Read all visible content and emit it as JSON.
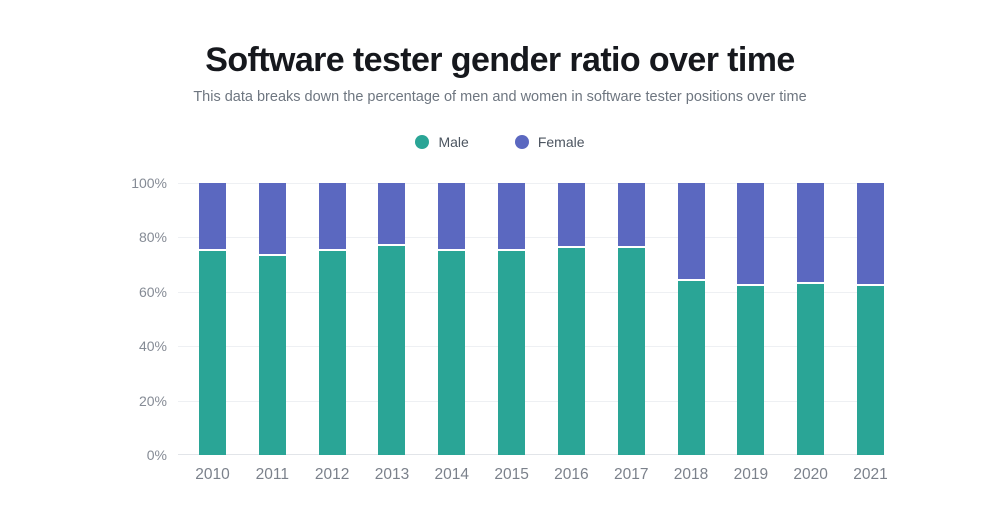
{
  "page": {
    "background": "#ffffff"
  },
  "chart_data": {
    "type": "bar",
    "stacked": true,
    "title": "Software tester gender ratio over time",
    "subtitle": "This data breaks down the percentage of men and women in software tester positions over time",
    "categories": [
      "2010",
      "2011",
      "2012",
      "2013",
      "2014",
      "2015",
      "2016",
      "2017",
      "2018",
      "2019",
      "2020",
      "2021"
    ],
    "series": [
      {
        "name": "Male",
        "color": "#2aa596",
        "values": [
          75,
          73,
          75,
          77,
          75,
          75,
          76,
          76,
          64,
          62,
          63,
          62
        ]
      },
      {
        "name": "Female",
        "color": "#5b68c0",
        "values": [
          25,
          27,
          25,
          23,
          25,
          25,
          24,
          24,
          36,
          38,
          37,
          38
        ]
      }
    ],
    "ylim": [
      0,
      100
    ],
    "yticks": [
      0,
      20,
      40,
      60,
      80,
      100
    ],
    "ytick_suffix": "%",
    "grid": "horizontal",
    "legend_position": "top",
    "colors": {
      "title_text": "#16181d",
      "subtitle_text": "#6e7680",
      "axis_text": "#858b95",
      "gridline": "#eef0f3",
      "baseline": "#e2e5e9",
      "segment_divider": "#ffffff"
    }
  }
}
